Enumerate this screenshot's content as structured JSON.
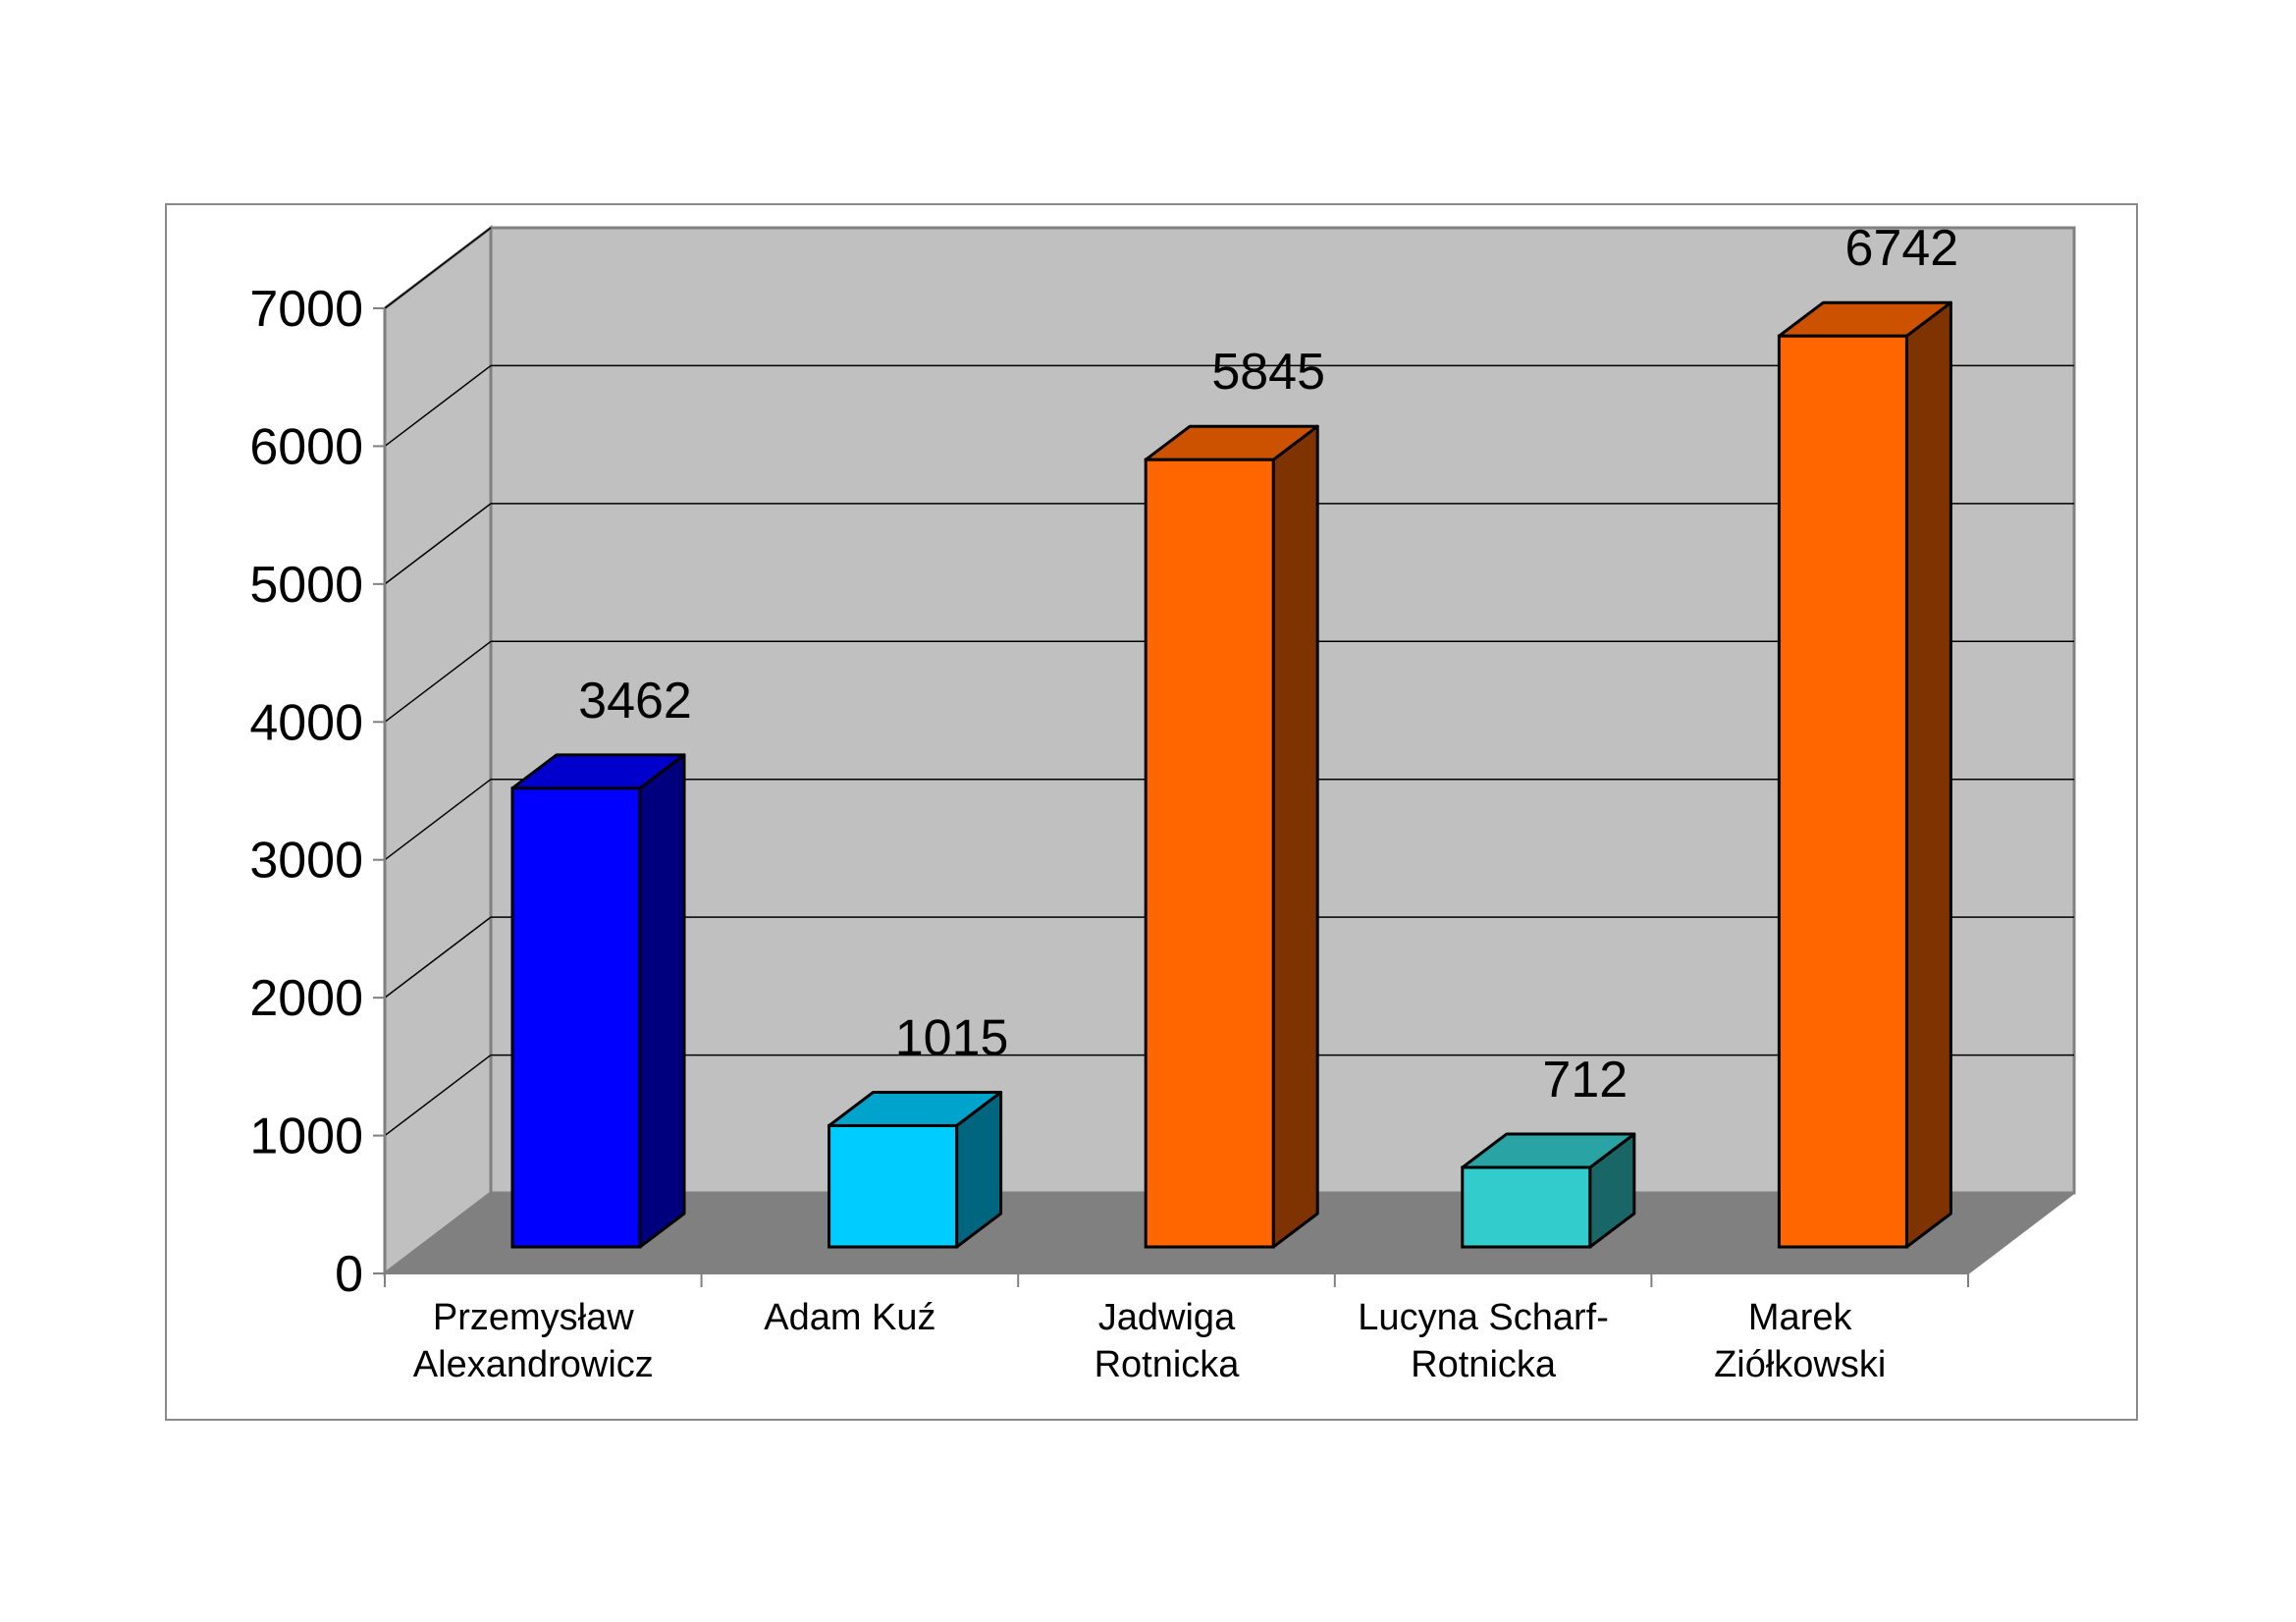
{
  "chart_data": {
    "type": "bar",
    "style": "3d-column",
    "title": "",
    "xlabel": "",
    "ylabel": "",
    "ylim": [
      0,
      7000
    ],
    "yticks": [
      0,
      1000,
      2000,
      3000,
      4000,
      5000,
      6000,
      7000
    ],
    "grid": true,
    "legend": "none",
    "categories": [
      [
        "Przemysław",
        "Alexandrowicz"
      ],
      [
        "Adam  Kuź"
      ],
      [
        "Jadwiga",
        "Rotnicka"
      ],
      [
        "Lucyna  Scharf-",
        "Rotnicka"
      ],
      [
        "Marek",
        "Ziółkowski"
      ]
    ],
    "values": [
      3462,
      1015,
      5845,
      712,
      6742
    ],
    "data_labels": [
      "3462",
      "1015",
      "5845",
      "712",
      "6742"
    ],
    "colors": {
      "bars": [
        {
          "front": "#0000ff",
          "side": "#00007f",
          "top": "#0000cc"
        },
        {
          "front": "#00ccff",
          "side": "#00667f",
          "top": "#00a3cc"
        },
        {
          "front": "#ff6600",
          "side": "#7f3300",
          "top": "#cc5200"
        },
        {
          "front": "#33cccc",
          "side": "#196666",
          "top": "#29a3a3"
        },
        {
          "front": "#ff6600",
          "side": "#7f3300",
          "top": "#cc5200"
        }
      ],
      "back_wall": "#c0c0c0",
      "side_wall": "#c0c0c0",
      "floor": "#808080",
      "gridline": "#000000"
    }
  }
}
